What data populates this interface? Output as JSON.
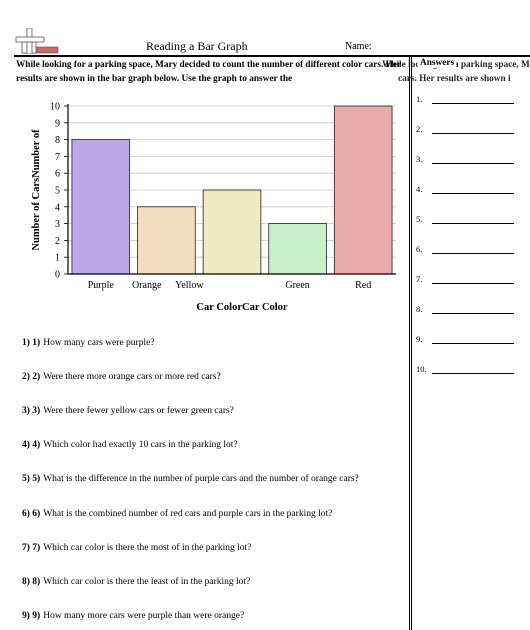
{
  "header": {
    "title": "Reading a Bar Graph",
    "name_label": "Name:"
  },
  "instructions": {
    "text": "While looking for a parking space, Mary decided to count the number of different color cars. Her results are shown in the bar graph below. Use the graph to answer the",
    "overflow_text": "While looking for a parking space, Mary decided to count the number of different color cars. Her results are shown i"
  },
  "answers": {
    "heading": "Answers",
    "numbers": [
      "1.",
      "2.",
      "3.",
      "4.",
      "5.",
      "6.",
      "7.",
      "8.",
      "9.",
      "10."
    ]
  },
  "chart_data": {
    "type": "bar",
    "categories": [
      "Purple",
      "Orange",
      "Yellow",
      "Green",
      "Red"
    ],
    "values": [
      8,
      4,
      5,
      3,
      10
    ],
    "colors": [
      "#b9a9e6",
      "#f3dcc0",
      "#f0eac0",
      "#c7efc8",
      "#e8aaaa"
    ],
    "xlabel": "Car ColorCar Color",
    "ylabel": "Number of CarsNumber of",
    "ylim": [
      0,
      10
    ],
    "yticks": [
      "0",
      "1",
      "2",
      "3",
      "4",
      "5",
      "6",
      "7",
      "8",
      "9",
      "10"
    ],
    "grid": true
  },
  "questions": [
    {
      "num": "1) 1)",
      "text": "How many cars were purple?"
    },
    {
      "num": "2) 2)",
      "text": "Were there more orange cars or more red cars?"
    },
    {
      "num": "3) 3)",
      "text": "Were there fewer yellow cars or fewer green cars?"
    },
    {
      "num": "4) 4)",
      "text": "Which color had exactly 10 cars in the parking lot?"
    },
    {
      "num": "5) 5)",
      "text": "What is the difference in the number of purple cars and the number of orange cars?"
    },
    {
      "num": "6) 6)",
      "text": "What is the combined number of red cars and purple cars in the parking lot?"
    },
    {
      "num": "7) 7)",
      "text": "Which car color is there the most of in the parking lot?"
    },
    {
      "num": "8) 8)",
      "text": "Which car color is there the least of in the parking lot?"
    },
    {
      "num": "9) 9)",
      "text": "How many more cars were purple than were orange?"
    }
  ]
}
